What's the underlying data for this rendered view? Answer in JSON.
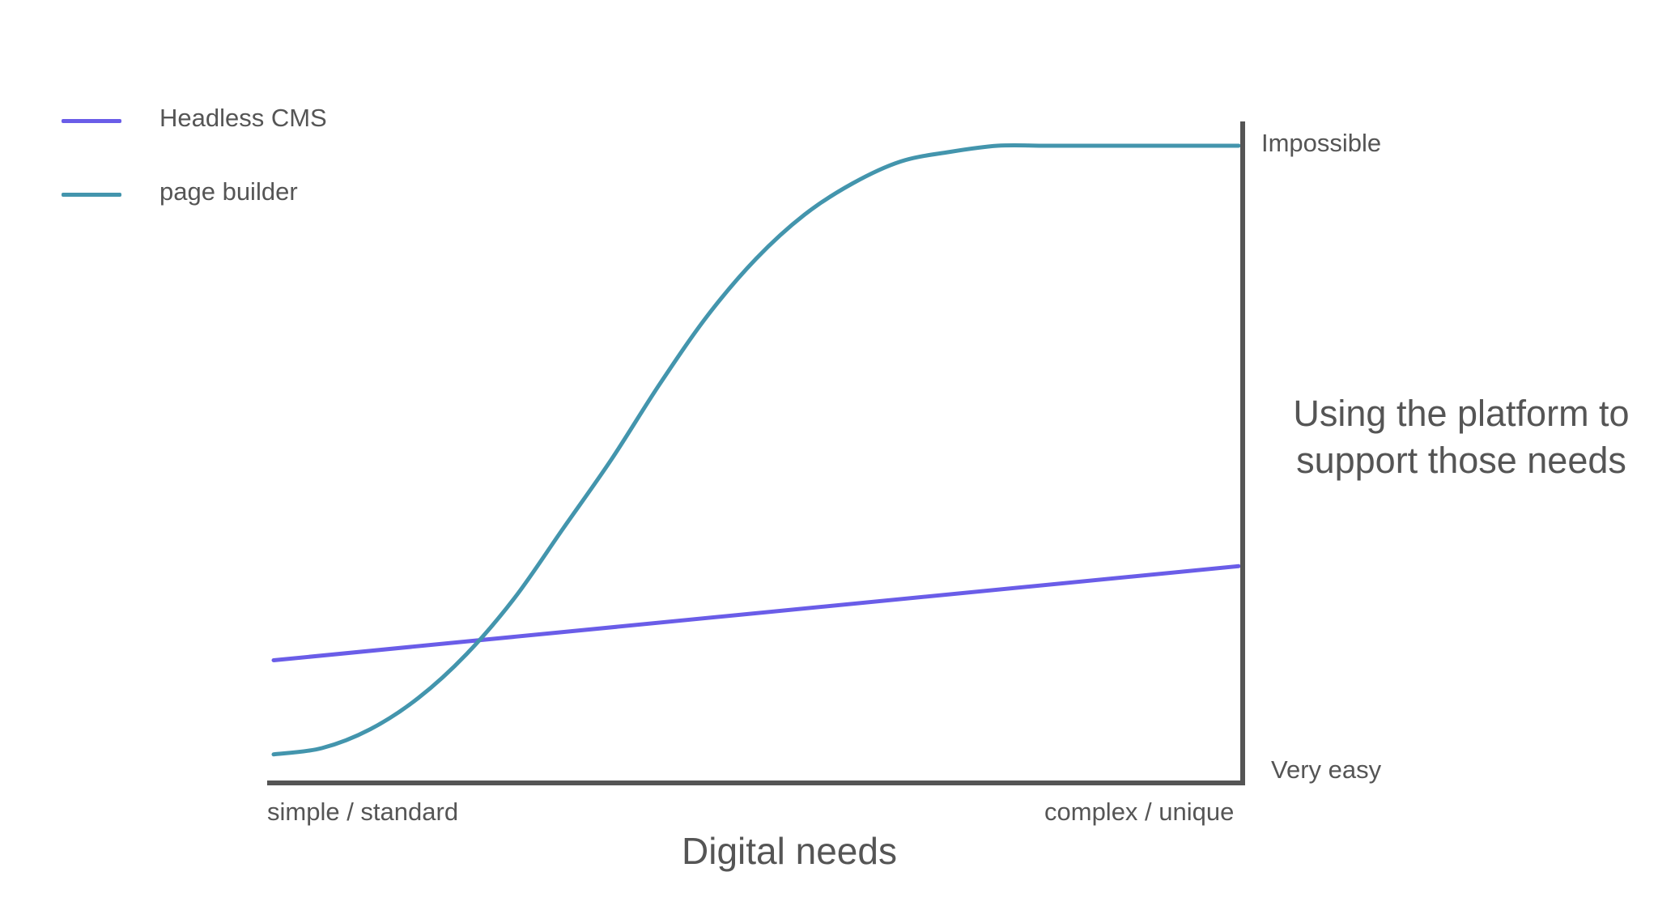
{
  "chart_data": {
    "type": "line",
    "title": "",
    "xlabel": "Digital needs",
    "ylabel": "Using the platform to support those needs",
    "x_tick_labels": {
      "start": "simple / standard",
      "end": "complex / unique"
    },
    "y_tick_labels": {
      "bottom": "Very easy",
      "top": "Impossible"
    },
    "xlim": [
      0,
      1
    ],
    "ylim": [
      0,
      1
    ],
    "grid": false,
    "legend_position": "top-left",
    "series": [
      {
        "name": "Headless CMS",
        "color": "#6a5de8",
        "x": [
          0,
          1
        ],
        "y": [
          0.18,
          0.33
        ]
      },
      {
        "name": "page builder",
        "color": "#4395ad",
        "x": [
          0,
          0.05,
          0.1,
          0.15,
          0.2,
          0.25,
          0.3,
          0.35,
          0.4,
          0.45,
          0.5,
          0.55,
          0.6,
          0.65,
          0.7,
          0.75,
          0.8,
          0.85,
          0.9,
          0.95,
          1.0
        ],
        "y": [
          0.03,
          0.04,
          0.07,
          0.12,
          0.19,
          0.28,
          0.39,
          0.5,
          0.62,
          0.73,
          0.82,
          0.89,
          0.94,
          0.975,
          0.99,
          1.0,
          1.0,
          1.0,
          1.0,
          1.0,
          1.0
        ]
      }
    ]
  }
}
